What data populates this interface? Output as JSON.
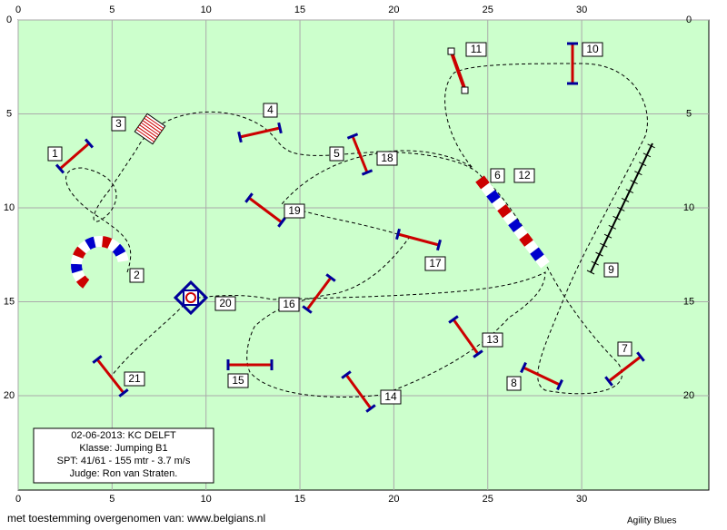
{
  "axis": {
    "x_ticks": [
      0,
      5,
      10,
      15,
      20,
      25,
      30
    ],
    "y_ticks": [
      0,
      5,
      10,
      15,
      20
    ]
  },
  "obstacle_labels": [
    "1",
    "2",
    "3",
    "4",
    "5",
    "6",
    "7",
    "8",
    "9",
    "10",
    "11",
    "12",
    "13",
    "14",
    "15",
    "16",
    "17",
    "18",
    "19",
    "20",
    "21"
  ],
  "info": [
    "02-06-2013: KC DELFT",
    "Klasse: Jumping B1",
    "SPT: 41/61 - 155 mtr - 3.7 m/s",
    "Judge: Ron van Straten."
  ],
  "footer": {
    "credit": "met toestemming overgenomen van: www.belgians.nl",
    "brand": "Agility Blues"
  }
}
